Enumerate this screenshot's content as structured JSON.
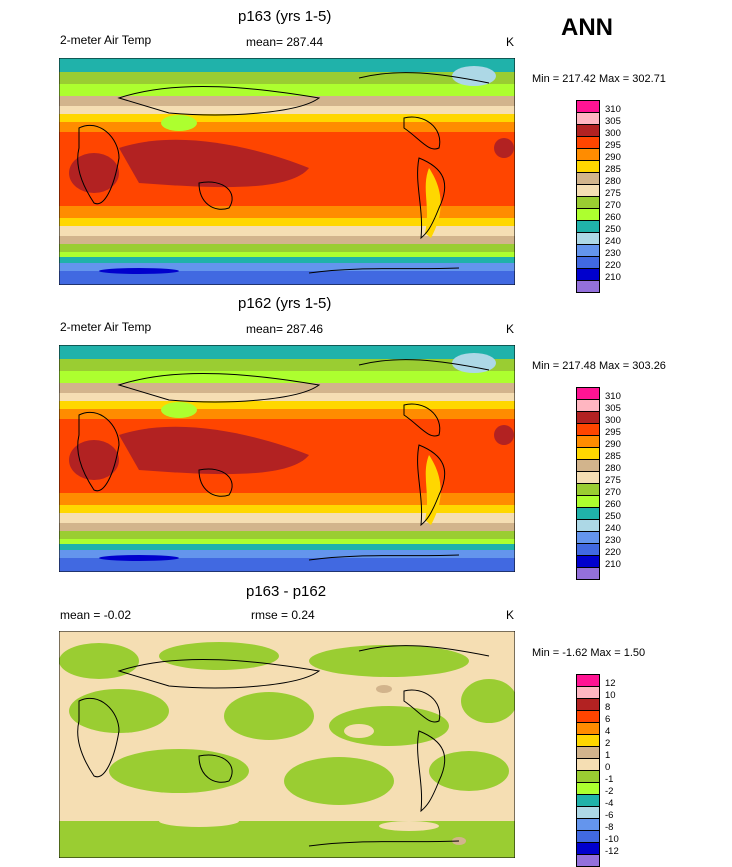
{
  "season": "ANN",
  "panels": [
    {
      "id": "p163",
      "title": "p163 (yrs 1-5)",
      "left_label": "2-meter Air Temp",
      "center_label": "mean= 287.44",
      "units": "K",
      "minmax": "Min = 217.42 Max = 302.71",
      "colorbar": {
        "labels": [
          "310",
          "305",
          "300",
          "295",
          "290",
          "285",
          "280",
          "275",
          "270",
          "260",
          "250",
          "240",
          "230",
          "220",
          "210"
        ],
        "colors": [
          "#ff1493",
          "#ffb6c1",
          "#b22222",
          "#ff4500",
          "#ff8c00",
          "#ffd700",
          "#d2b48c",
          "#f5deb3",
          "#9acd32",
          "#adff2f",
          "#20b2aa",
          "#add8e6",
          "#6495ed",
          "#4169e1",
          "#0000cd",
          "#9370db"
        ]
      }
    },
    {
      "id": "p162",
      "title": "p162 (yrs 1-5)",
      "left_label": "2-meter Air Temp",
      "center_label": "mean= 287.46",
      "units": "K",
      "minmax": "Min = 217.48 Max = 303.26",
      "colorbar": {
        "labels": [
          "310",
          "305",
          "300",
          "295",
          "290",
          "285",
          "280",
          "275",
          "270",
          "260",
          "250",
          "240",
          "230",
          "220",
          "210"
        ],
        "colors": [
          "#ff1493",
          "#ffb6c1",
          "#b22222",
          "#ff4500",
          "#ff8c00",
          "#ffd700",
          "#d2b48c",
          "#f5deb3",
          "#9acd32",
          "#adff2f",
          "#20b2aa",
          "#add8e6",
          "#6495ed",
          "#4169e1",
          "#0000cd",
          "#9370db"
        ]
      }
    },
    {
      "id": "diff",
      "title": "p163 - p162",
      "left_label": "mean = -0.02",
      "center_label": "rmse = 0.24",
      "units": "K",
      "minmax": "Min = -1.62 Max = 1.50",
      "colorbar": {
        "labels": [
          "12",
          "10",
          "8",
          "6",
          "4",
          "2",
          "1",
          "0",
          "-1",
          "-2",
          "-4",
          "-6",
          "-8",
          "-10",
          "-12"
        ],
        "colors": [
          "#ff1493",
          "#ffb6c1",
          "#b22222",
          "#ff4500",
          "#ff8c00",
          "#ffd700",
          "#d2b48c",
          "#f5deb3",
          "#9acd32",
          "#adff2f",
          "#20b2aa",
          "#add8e6",
          "#6495ed",
          "#4169e1",
          "#0000cd",
          "#9370db"
        ]
      }
    }
  ]
}
